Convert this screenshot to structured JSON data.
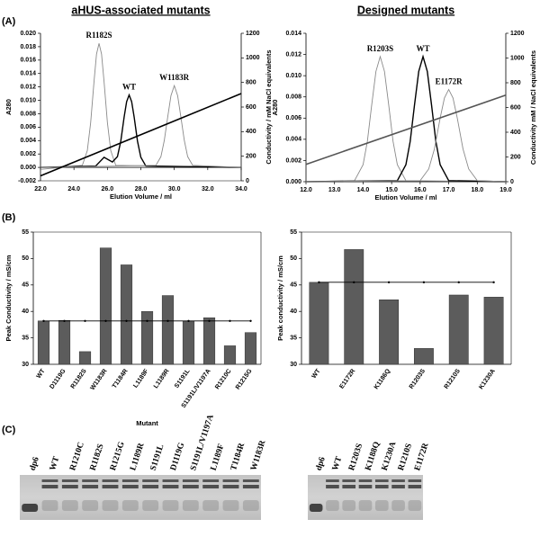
{
  "panel_labels": [
    "(A)",
    "(B)",
    "(C)"
  ],
  "chart_data": [
    {
      "type": "line",
      "title": "aHUS-associated mutants",
      "xlabel": "Elution Volume / ml",
      "ylabel": "A280",
      "y2label": "Conductivity / mM NaCl equivalents",
      "xlim": [
        22,
        34
      ],
      "xticks": [
        {
          "value": 22,
          "label": "22.0"
        },
        {
          "value": 24,
          "label": "24.0"
        },
        {
          "value": 26,
          "label": "26.0"
        },
        {
          "value": 28,
          "label": "28.0"
        },
        {
          "value": 30,
          "label": "30.0"
        },
        {
          "value": 32,
          "label": "32.0"
        },
        {
          "value": 34,
          "label": "34.0"
        }
      ],
      "ylim": [
        -0.002,
        0.02
      ],
      "yticks": [
        {
          "value": -0.002,
          "label": "-0.002"
        },
        {
          "value": 0,
          "label": "0.000"
        },
        {
          "value": 0.002,
          "label": "0.002"
        },
        {
          "value": 0.004,
          "label": "0.004"
        },
        {
          "value": 0.006,
          "label": "0.006"
        },
        {
          "value": 0.008,
          "label": "0.008"
        },
        {
          "value": 0.01,
          "label": "0.010"
        },
        {
          "value": 0.012,
          "label": "0.012"
        },
        {
          "value": 0.014,
          "label": "0.014"
        },
        {
          "value": 0.016,
          "label": "0.016"
        },
        {
          "value": 0.018,
          "label": "0.018"
        },
        {
          "value": 0.02,
          "label": "0.020"
        }
      ],
      "y2lim": [
        0,
        1200
      ],
      "y2ticks": [
        0,
        200,
        400,
        600,
        800,
        1000,
        1200
      ],
      "series": [
        {
          "name": "R1182S",
          "color": "#8a8a8a",
          "x": [
            22,
            24.5,
            24.8,
            25.0,
            25.2,
            25.35,
            25.5,
            25.65,
            25.8,
            26.0,
            26.2,
            26.5,
            34
          ],
          "values": [
            -0.0003,
            0.0003,
            0.0025,
            0.0067,
            0.0128,
            0.0169,
            0.0185,
            0.0169,
            0.0128,
            0.0067,
            0.0025,
            0.0003,
            0
          ]
        },
        {
          "name": "WT",
          "color": "#000000",
          "x": [
            22,
            25.3,
            25.8,
            26.3,
            26.6,
            26.8,
            27.0,
            27.15,
            27.3,
            27.45,
            27.6,
            27.8,
            28.0,
            28.3,
            34
          ],
          "values": [
            0,
            0.0002,
            0.0015,
            0.0008,
            0.0016,
            0.0039,
            0.0075,
            0.0098,
            0.0108,
            0.0098,
            0.0075,
            0.0039,
            0.0015,
            0.0002,
            0
          ]
        },
        {
          "name": "W1183R",
          "color": "#8a8a8a",
          "x": [
            22,
            28.9,
            29.2,
            29.4,
            29.6,
            29.8,
            30.0,
            30.2,
            30.4,
            30.6,
            30.8,
            31.1,
            34
          ],
          "values": [
            0,
            0.0003,
            0.0016,
            0.004,
            0.0074,
            0.0107,
            0.0122,
            0.0107,
            0.0074,
            0.004,
            0.0016,
            0.0003,
            0
          ]
        },
        {
          "axis": "y2",
          "color": "#000000",
          "x": [
            22,
            34
          ],
          "values": [
            40,
            710
          ]
        }
      ]
    },
    {
      "type": "line",
      "title": "Designed mutants",
      "xlabel": "Elution Volume / ml",
      "ylabel": "A280",
      "y2label": "Conductivity mM / NaCl equivalents",
      "xlim": [
        12,
        19
      ],
      "xticks": [
        {
          "value": 12,
          "label": "12.0"
        },
        {
          "value": 13,
          "label": "13.0"
        },
        {
          "value": 14,
          "label": "14.0"
        },
        {
          "value": 15,
          "label": "15.0"
        },
        {
          "value": 16,
          "label": "16.0"
        },
        {
          "value": 17,
          "label": "17.0"
        },
        {
          "value": 18,
          "label": "18.0"
        },
        {
          "value": 19,
          "label": "19.0"
        }
      ],
      "ylim": [
        0,
        0.014
      ],
      "yticks": [
        {
          "value": 0,
          "label": "0.000"
        },
        {
          "value": 0.002,
          "label": "0.002"
        },
        {
          "value": 0.004,
          "label": "0.004"
        },
        {
          "value": 0.006,
          "label": "0.006"
        },
        {
          "value": 0.008,
          "label": "0.008"
        },
        {
          "value": 0.01,
          "label": "0.010"
        },
        {
          "value": 0.012,
          "label": "0.012"
        },
        {
          "value": 0.014,
          "label": "0.014"
        }
      ],
      "y2lim": [
        0,
        1200
      ],
      "y2ticks": [
        0,
        200,
        400,
        600,
        800,
        1000,
        1200
      ],
      "series": [
        {
          "name": "R1203S",
          "color": "#8a8a8a",
          "x": [
            12,
            13.7,
            14.0,
            14.15,
            14.3,
            14.45,
            14.6,
            14.75,
            14.9,
            15.05,
            15.2,
            15.5,
            19
          ],
          "values": [
            0,
            0.0001,
            0.0016,
            0.0038,
            0.0072,
            0.0104,
            0.0118,
            0.0104,
            0.0072,
            0.0038,
            0.0016,
            0.0001,
            0
          ]
        },
        {
          "name": "WT",
          "color": "#000000",
          "x": [
            12,
            15.2,
            15.5,
            15.65,
            15.8,
            15.95,
            16.1,
            16.25,
            16.4,
            16.55,
            16.7,
            17.0,
            19
          ],
          "values": [
            0,
            0.0001,
            0.0016,
            0.0038,
            0.0072,
            0.0104,
            0.0118,
            0.0104,
            0.0072,
            0.0038,
            0.0016,
            0.0001,
            0
          ]
        },
        {
          "name": "E1172R",
          "color": "#8a8a8a",
          "x": [
            12,
            16.0,
            16.3,
            16.5,
            16.7,
            16.85,
            17.0,
            17.15,
            17.3,
            17.5,
            17.7,
            18.0,
            19
          ],
          "values": [
            0,
            0.0001,
            0.0012,
            0.0031,
            0.006,
            0.0079,
            0.0087,
            0.0079,
            0.006,
            0.0031,
            0.0012,
            0.0001,
            0
          ]
        },
        {
          "axis": "y2",
          "color": "#555555",
          "x": [
            12,
            19
          ],
          "values": [
            140,
            700
          ]
        }
      ]
    },
    {
      "type": "bar",
      "xlabel": "Mutant",
      "ylabel": "Peak Conductivity / mS/cm",
      "categories": [
        "WT",
        "D1119G",
        "R1182S",
        "W1183R",
        "T1184R",
        "L1189F",
        "L1189R",
        "S1191L",
        "S1191L/V1197A",
        "R1210C",
        "R1215G"
      ],
      "values": [
        38.2,
        38.3,
        32.4,
        52,
        48.8,
        40,
        43,
        38.2,
        38.8,
        33.5,
        36
      ],
      "color": "#5c5c5c",
      "reference_line": true,
      "ylim": [
        30,
        55
      ],
      "yticks": [
        30,
        35,
        40,
        45,
        50,
        55
      ]
    },
    {
      "type": "bar",
      "ylabel": "Peak conductivity / mS/cm",
      "categories": [
        "WT",
        "E1172R",
        "K1186Q",
        "R1203S",
        "R1210S",
        "K1230A"
      ],
      "values": [
        45.5,
        51.7,
        42.2,
        33,
        43.1,
        42.7
      ],
      "color": "#5c5c5c",
      "reference_line": true,
      "ylim": [
        30,
        55
      ],
      "yticks": [
        30,
        35,
        40,
        45,
        50,
        55
      ]
    }
  ],
  "gels": [
    {
      "lanes": [
        "dp6",
        "WT",
        "R1210C",
        "R1182S",
        "R1215G",
        "L1189R",
        "S1191L",
        "D1119G",
        "S1191L/V1197A",
        "L1189F",
        "T1184R",
        "W1183R"
      ]
    },
    {
      "lanes": [
        "dp6",
        "WT",
        "R1203S",
        "K1188Q",
        "K1230A",
        "R1210S",
        "E1172R"
      ]
    }
  ]
}
